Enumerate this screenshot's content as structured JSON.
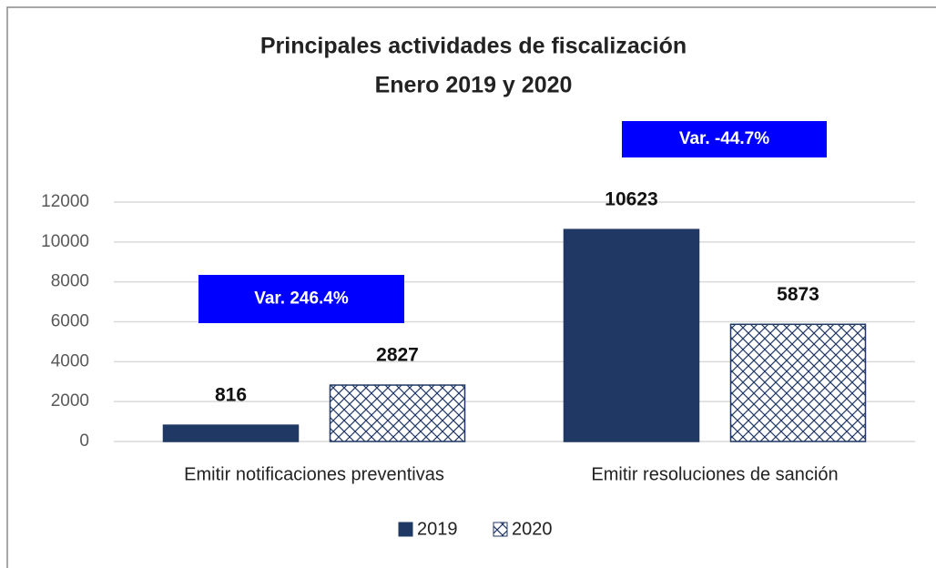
{
  "chart_data": {
    "type": "bar",
    "title": "Principales actividades de fiscalización",
    "subtitle": "Enero 2019 y 2020",
    "categories": [
      "Emitir notificaciones preventivas",
      "Emitir resoluciones de sanción"
    ],
    "series": [
      {
        "name": "2019",
        "color": "#203864",
        "values": [
          816,
          10623
        ]
      },
      {
        "name": "2020",
        "color": "#ffffff",
        "pattern": "crosshatch",
        "values": [
          2827,
          5873
        ]
      }
    ],
    "annotations": [
      "Var. 246.4%",
      "Var. -44.7%"
    ],
    "annotation_color": "#0000ff",
    "ylim": [
      0,
      12000
    ],
    "yticks": [
      0,
      2000,
      4000,
      6000,
      8000,
      10000,
      12000
    ],
    "grid": true,
    "legend": "bottom"
  }
}
